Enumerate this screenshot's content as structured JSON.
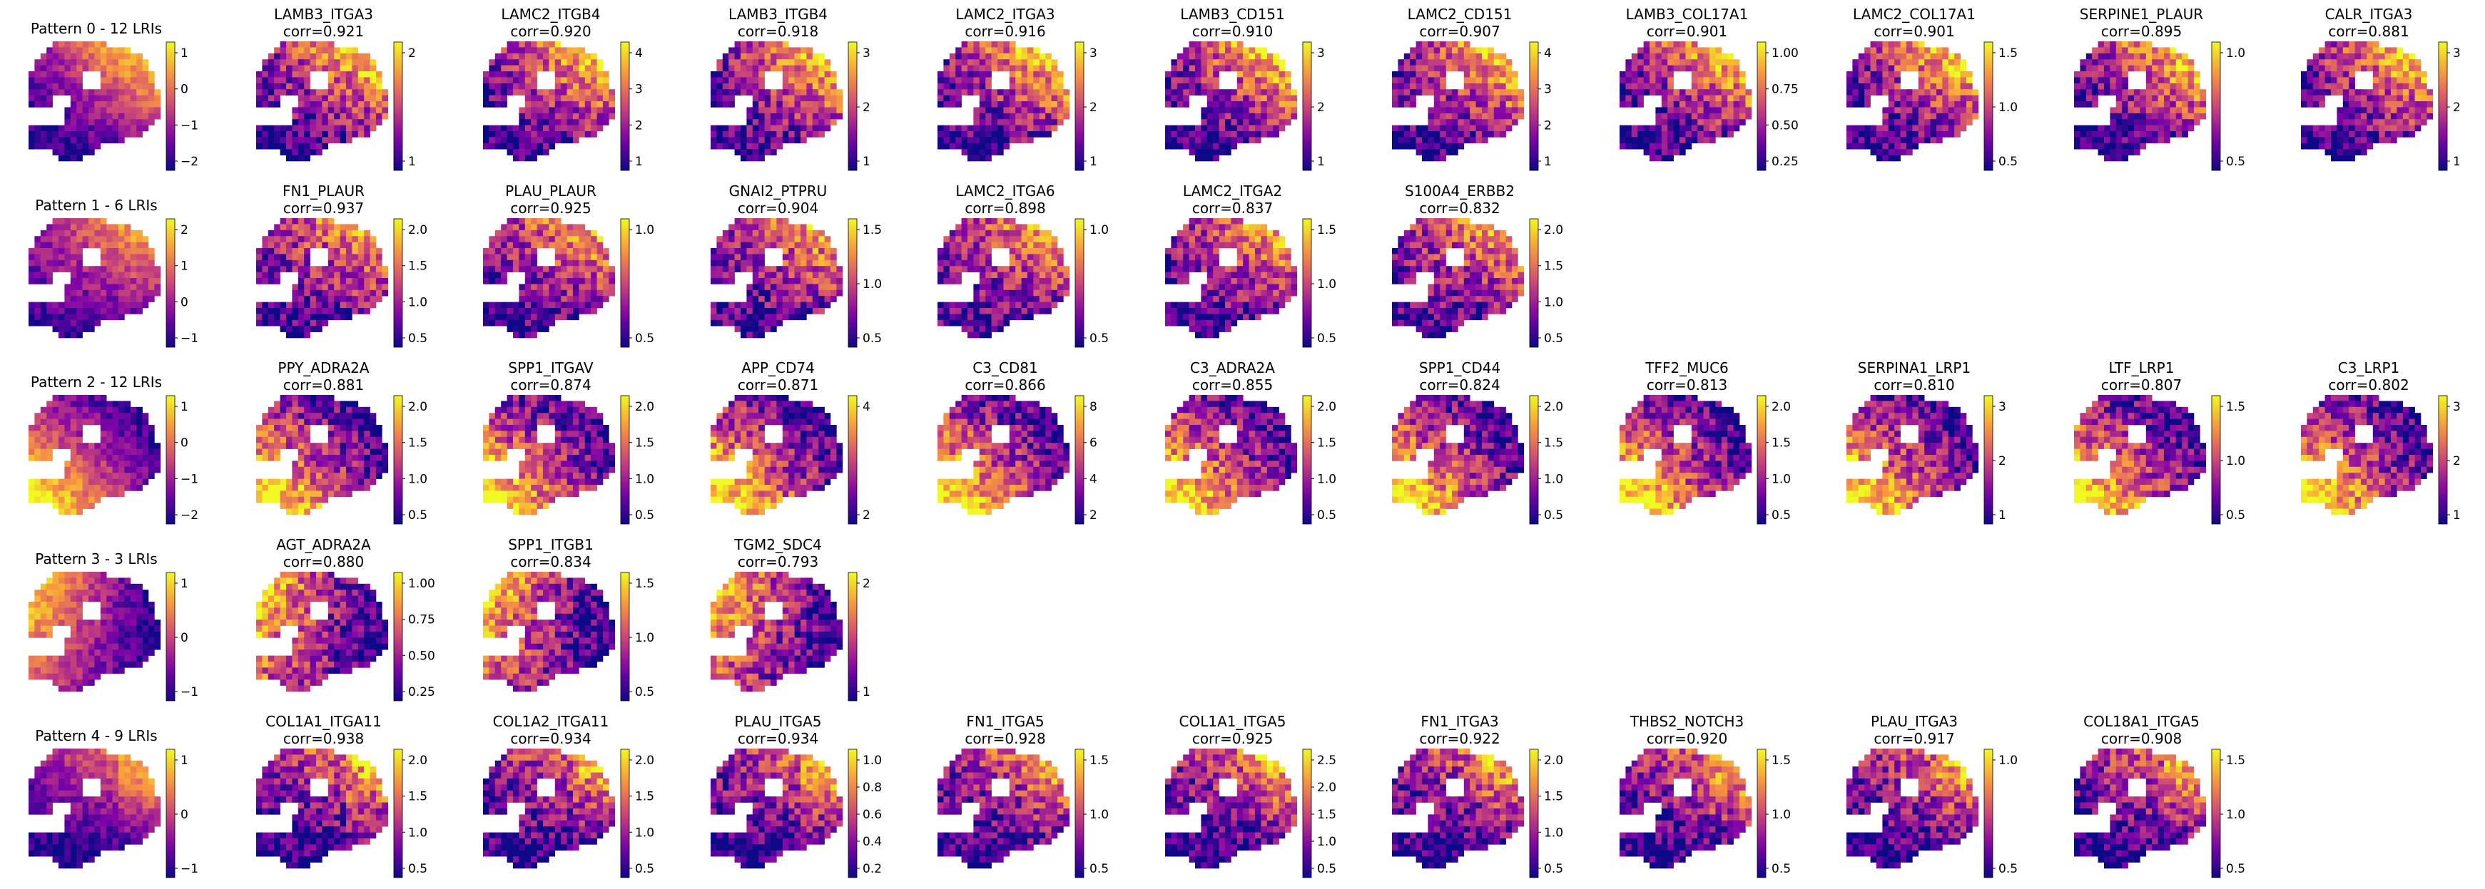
{
  "chart_data": {
    "type": "heatmap",
    "description_of_grid": "5 rows of spatial transcriptomics maps; first column shows pattern score, following columns show top ligand-receptor interactions (LRIs) with correlation values",
    "colormap": "plasma",
    "rows": [
      {
        "pattern": "Pattern 0 - 12 LRIs",
        "pattern_colorbar_ticks": [
          "1",
          "0",
          "−1",
          "−2"
        ],
        "lris": [
          {
            "name": "LAMB3_ITGA3",
            "corr": "corr=0.921",
            "ticks": [
              "2",
              "1"
            ]
          },
          {
            "name": "LAMC2_ITGB4",
            "corr": "corr=0.920",
            "ticks": [
              "4",
              "3",
              "2",
              "1"
            ]
          },
          {
            "name": "LAMB3_ITGB4",
            "corr": "corr=0.918",
            "ticks": [
              "3",
              "2",
              "1"
            ]
          },
          {
            "name": "LAMC2_ITGA3",
            "corr": "corr=0.916",
            "ticks": [
              "3",
              "2",
              "1"
            ]
          },
          {
            "name": "LAMB3_CD151",
            "corr": "corr=0.910",
            "ticks": [
              "3",
              "2",
              "1"
            ]
          },
          {
            "name": "LAMC2_CD151",
            "corr": "corr=0.907",
            "ticks": [
              "4",
              "3",
              "2",
              "1"
            ]
          },
          {
            "name": "LAMB3_COL17A1",
            "corr": "corr=0.901",
            "ticks": [
              "1.00",
              "0.75",
              "0.50",
              "0.25"
            ]
          },
          {
            "name": "LAMC2_COL17A1",
            "corr": "corr=0.901",
            "ticks": [
              "1.5",
              "1.0",
              "0.5"
            ]
          },
          {
            "name": "SERPINE1_PLAUR",
            "corr": "corr=0.895",
            "ticks": [
              "1.0",
              "0.5"
            ]
          },
          {
            "name": "CALR_ITGA3",
            "corr": "corr=0.881",
            "ticks": [
              "3",
              "2",
              "1"
            ]
          }
        ]
      },
      {
        "pattern": "Pattern 1 - 6 LRIs",
        "pattern_colorbar_ticks": [
          "2",
          "1",
          "0",
          "−1"
        ],
        "lris": [
          {
            "name": "FN1_PLAUR",
            "corr": "corr=0.937",
            "ticks": [
              "2.0",
              "1.5",
              "1.0",
              "0.5"
            ]
          },
          {
            "name": "PLAU_PLAUR",
            "corr": "corr=0.925",
            "ticks": [
              "1.0",
              "0.5"
            ]
          },
          {
            "name": "GNAI2_PTPRU",
            "corr": "corr=0.904",
            "ticks": [
              "1.5",
              "1.0",
              "0.5"
            ]
          },
          {
            "name": "LAMC2_ITGA6",
            "corr": "corr=0.898",
            "ticks": [
              "1.0",
              "0.5"
            ]
          },
          {
            "name": "LAMC2_ITGA2",
            "corr": "corr=0.837",
            "ticks": [
              "1.5",
              "1.0",
              "0.5"
            ]
          },
          {
            "name": "S100A4_ERBB2",
            "corr": "corr=0.832",
            "ticks": [
              "2.0",
              "1.5",
              "1.0",
              "0.5"
            ]
          }
        ]
      },
      {
        "pattern": "Pattern 2 - 12 LRIs",
        "pattern_colorbar_ticks": [
          "1",
          "0",
          "−1",
          "−2"
        ],
        "lris": [
          {
            "name": "PPY_ADRA2A",
            "corr": "corr=0.881",
            "ticks": [
              "2.0",
              "1.5",
              "1.0",
              "0.5"
            ]
          },
          {
            "name": "SPP1_ITGAV",
            "corr": "corr=0.874",
            "ticks": [
              "2.0",
              "1.5",
              "1.0",
              "0.5"
            ]
          },
          {
            "name": "APP_CD74",
            "corr": "corr=0.871",
            "ticks": [
              "4",
              "2"
            ]
          },
          {
            "name": "C3_CD81",
            "corr": "corr=0.866",
            "ticks": [
              "8",
              "6",
              "4",
              "2"
            ]
          },
          {
            "name": "C3_ADRA2A",
            "corr": "corr=0.855",
            "ticks": [
              "2.0",
              "1.5",
              "1.0",
              "0.5"
            ]
          },
          {
            "name": "SPP1_CD44",
            "corr": "corr=0.824",
            "ticks": [
              "2.0",
              "1.5",
              "1.0",
              "0.5"
            ]
          },
          {
            "name": "TFF2_MUC6",
            "corr": "corr=0.813",
            "ticks": [
              "2.0",
              "1.5",
              "1.0",
              "0.5"
            ]
          },
          {
            "name": "SERPINA1_LRP1",
            "corr": "corr=0.810",
            "ticks": [
              "3",
              "2",
              "1"
            ]
          },
          {
            "name": "LTF_LRP1",
            "corr": "corr=0.807",
            "ticks": [
              "1.5",
              "1.0",
              "0.5"
            ]
          },
          {
            "name": "C3_LRP1",
            "corr": "corr=0.802",
            "ticks": [
              "3",
              "2",
              "1"
            ]
          }
        ]
      },
      {
        "pattern": "Pattern 3 - 3 LRIs",
        "pattern_colorbar_ticks": [
          "1",
          "0",
          "−1"
        ],
        "lris": [
          {
            "name": "AGT_ADRA2A",
            "corr": "corr=0.880",
            "ticks": [
              "1.00",
              "0.75",
              "0.50",
              "0.25"
            ]
          },
          {
            "name": "SPP1_ITGB1",
            "corr": "corr=0.834",
            "ticks": [
              "1.5",
              "1.0",
              "0.5"
            ]
          },
          {
            "name": "TGM2_SDC4",
            "corr": "corr=0.793",
            "ticks": [
              "2",
              "1"
            ]
          }
        ]
      },
      {
        "pattern": "Pattern 4 - 9 LRIs",
        "pattern_colorbar_ticks": [
          "1",
          "0",
          "−1"
        ],
        "lris": [
          {
            "name": "COL1A1_ITGA11",
            "corr": "corr=0.938",
            "ticks": [
              "2.0",
              "1.5",
              "1.0",
              "0.5"
            ]
          },
          {
            "name": "COL1A2_ITGA11",
            "corr": "corr=0.934",
            "ticks": [
              "2.0",
              "1.5",
              "1.0",
              "0.5"
            ]
          },
          {
            "name": "PLAU_ITGA5",
            "corr": "corr=0.934",
            "ticks": [
              "1.0",
              "0.8",
              "0.6",
              "0.4",
              "0.2"
            ]
          },
          {
            "name": "FN1_ITGA5",
            "corr": "corr=0.928",
            "ticks": [
              "1.5",
              "1.0",
              "0.5"
            ]
          },
          {
            "name": "COL1A1_ITGA5",
            "corr": "corr=0.925",
            "ticks": [
              "2.5",
              "2.0",
              "1.5",
              "1.0",
              "0.5"
            ]
          },
          {
            "name": "FN1_ITGA3",
            "corr": "corr=0.922",
            "ticks": [
              "2.0",
              "1.5",
              "1.0",
              "0.5"
            ]
          },
          {
            "name": "THBS2_NOTCH3",
            "corr": "corr=0.920",
            "ticks": [
              "1.5",
              "1.0",
              "0.5"
            ]
          },
          {
            "name": "PLAU_ITGA3",
            "corr": "corr=0.917",
            "ticks": [
              "1.0",
              "0.5"
            ]
          },
          {
            "name": "COL18A1_ITGA5",
            "corr": "corr=0.908",
            "ticks": [
              "1.5",
              "1.0",
              "0.5"
            ]
          }
        ]
      }
    ]
  }
}
